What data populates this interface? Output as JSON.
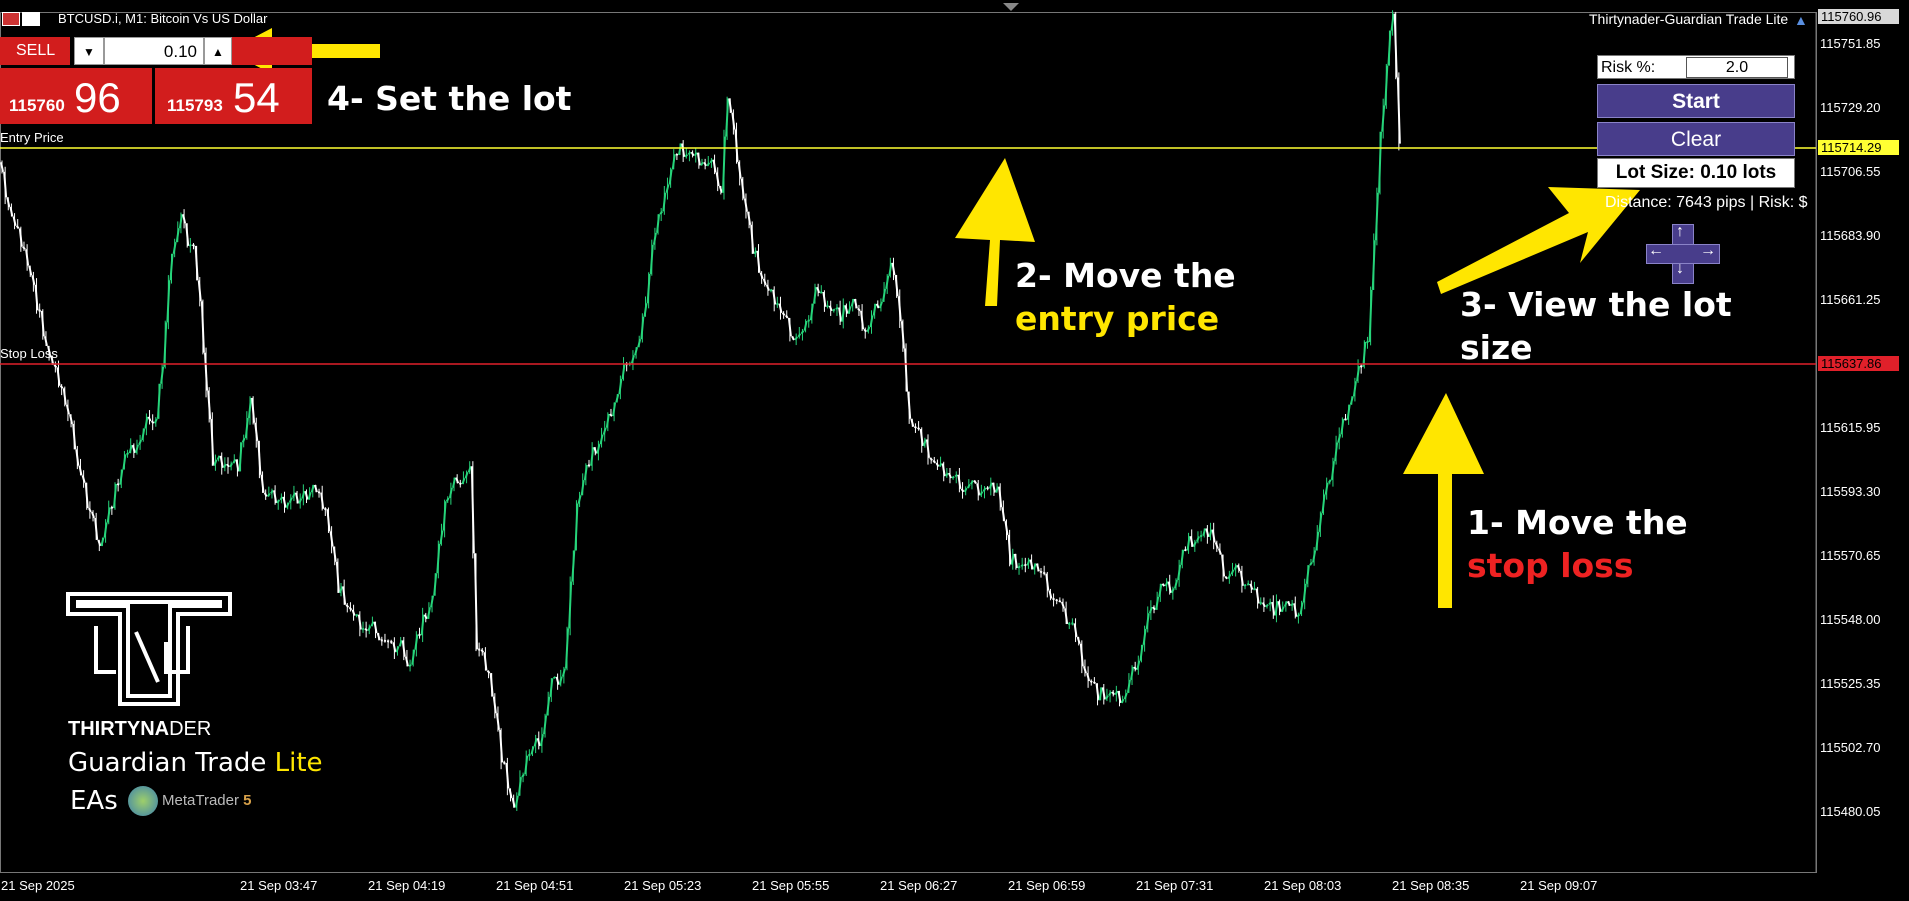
{
  "window": {
    "symbol_title": "BTCUSD.i, M1:  Bitcoin Vs US Dollar",
    "ea_title": "Thirtynader-Guardian Trade Lite"
  },
  "trade_panel": {
    "sell_label": "SELL",
    "lot_value": "0.10",
    "sell_price_prefix": "115760",
    "sell_price_big": "96",
    "buy_price_prefix": "115793",
    "buy_price_big": "54"
  },
  "ea_panel": {
    "risk_label": "Risk %:",
    "risk_value": "2.0",
    "start_label": "Start",
    "clear_label": "Clear",
    "lot_size_text": "Lot Size: 0.10 lots",
    "distance_text": "Distance: 7643 pips | Risk: $"
  },
  "lines": {
    "entry_label": "Entry Price",
    "entry_price": "115714.29",
    "stop_label": "Stop Loss",
    "stop_price": "115637.86",
    "current_price": "115760.96"
  },
  "colors": {
    "up_candle": "#26d47a",
    "down_candle": "#ffffff",
    "entry_line": "#ffff33",
    "stop_line": "#e0202a",
    "sell_red": "#d21d1d",
    "panel_purple": "#483d8b",
    "annotation_yellow": "#ffe600",
    "annotation_red": "#ee2222"
  },
  "price_axis": [
    "115751.85",
    "115729.20",
    "115706.55",
    "115683.90",
    "115661.25",
    "115615.95",
    "115593.30",
    "115570.65",
    "115548.00",
    "115525.35",
    "115502.70",
    "115480.05"
  ],
  "time_axis": [
    "21 Sep 2025",
    "21 Sep 03:47",
    "21 Sep 04:19",
    "21 Sep 04:51",
    "21 Sep 05:23",
    "21 Sep 05:55",
    "21 Sep 06:27",
    "21 Sep 06:59",
    "21 Sep 07:31",
    "21 Sep 08:03",
    "21 Sep 08:35",
    "21 Sep 09:07"
  ],
  "annotations": {
    "step4": "4- Set the lot",
    "step2_line1": "2- Move the",
    "step2_line2": "entry price",
    "step3_line1": "3- View the lot",
    "step3_line2": "size",
    "step1_line1": "1- Move the",
    "step1_line2": "stop loss"
  },
  "logo": {
    "brand_bold": "THIRTYNA",
    "brand_rest": "DER",
    "product": "Guardian Trade",
    "product_accent": "Lite",
    "eas": "EAs",
    "platform": "MetaTrader",
    "platform_version": "5"
  },
  "chart_data": {
    "type": "candlestick",
    "title": "BTCUSD.i, M1:  Bitcoin Vs US Dollar",
    "y_ticks": [
      115480.05,
      115502.7,
      115525.35,
      115548.0,
      115570.65,
      115593.3,
      115615.95,
      115637.86,
      115661.25,
      115683.9,
      115706.55,
      115714.29,
      115729.2,
      115751.85,
      115760.96
    ],
    "x_ticks": [
      "21 Sep 2025",
      "21 Sep 03:47",
      "21 Sep 04:19",
      "21 Sep 04:51",
      "21 Sep 05:23",
      "21 Sep 05:55",
      "21 Sep 06:27",
      "21 Sep 06:59",
      "21 Sep 07:31",
      "21 Sep 08:03",
      "21 Sep 08:35",
      "21 Sep 09:07"
    ],
    "ylim": [
      115470,
      115768
    ],
    "entry_price": 115714.29,
    "stop_loss": 115637.86,
    "close_path": [
      [
        0,
        115710
      ],
      [
        4,
        115690
      ],
      [
        8,
        115680
      ],
      [
        12,
        115660
      ],
      [
        16,
        115640
      ],
      [
        20,
        115630
      ],
      [
        24,
        115610
      ],
      [
        26,
        115600
      ],
      [
        28,
        115590
      ],
      [
        32,
        115575
      ],
      [
        36,
        115590
      ],
      [
        40,
        115605
      ],
      [
        44,
        115610
      ],
      [
        48,
        115620
      ],
      [
        50,
        115620
      ],
      [
        52,
        115640
      ],
      [
        55,
        115680
      ],
      [
        58,
        115690
      ],
      [
        60,
        115682
      ],
      [
        62,
        115678
      ],
      [
        64,
        115660
      ],
      [
        66,
        115630
      ],
      [
        68,
        115605
      ],
      [
        72,
        115604
      ],
      [
        76,
        115603
      ],
      [
        80,
        115625
      ],
      [
        84,
        115593
      ],
      [
        90,
        115590
      ],
      [
        96,
        115591
      ],
      [
        100,
        115595
      ],
      [
        104,
        115588
      ],
      [
        108,
        115560
      ],
      [
        112,
        115550
      ],
      [
        116,
        115545
      ],
      [
        120,
        115545
      ],
      [
        124,
        115538
      ],
      [
        128,
        115540
      ],
      [
        130,
        115530
      ],
      [
        134,
        115545
      ],
      [
        138,
        115555
      ],
      [
        142,
        115590
      ],
      [
        146,
        115598
      ],
      [
        150,
        115600
      ],
      [
        152,
        115540
      ],
      [
        156,
        115530
      ],
      [
        160,
        115500
      ],
      [
        164,
        115480
      ],
      [
        168,
        115500
      ],
      [
        172,
        115505
      ],
      [
        176,
        115525
      ],
      [
        180,
        115530
      ],
      [
        184,
        115590
      ],
      [
        188,
        115605
      ],
      [
        192,
        115612
      ],
      [
        196,
        115625
      ],
      [
        200,
        115640
      ],
      [
        204,
        115645
      ],
      [
        208,
        115680
      ],
      [
        212,
        115700
      ],
      [
        216,
        115715
      ],
      [
        220,
        115712
      ],
      [
        224,
        115710
      ],
      [
        228,
        115708
      ],
      [
        230,
        115700
      ],
      [
        232,
        115735
      ],
      [
        236,
        115705
      ],
      [
        240,
        115680
      ],
      [
        244,
        115665
      ],
      [
        248,
        115660
      ],
      [
        252,
        115650
      ],
      [
        256,
        115648
      ],
      [
        260,
        115665
      ],
      [
        264,
        115660
      ],
      [
        268,
        115656
      ],
      [
        272,
        115660
      ],
      [
        276,
        115650
      ],
      [
        280,
        115660
      ],
      [
        284,
        115672
      ],
      [
        286,
        115665
      ],
      [
        290,
        115620
      ],
      [
        294,
        115612
      ],
      [
        298,
        115602
      ],
      [
        302,
        115600
      ],
      [
        306,
        115596
      ],
      [
        310,
        115595
      ],
      [
        314,
        115594
      ],
      [
        318,
        115596
      ],
      [
        322,
        115570
      ],
      [
        326,
        115566
      ],
      [
        330,
        115568
      ],
      [
        334,
        115560
      ],
      [
        338,
        115552
      ],
      [
        342,
        115546
      ],
      [
        346,
        115530
      ],
      [
        350,
        115522
      ],
      [
        354,
        115521
      ],
      [
        358,
        115520
      ],
      [
        362,
        115532
      ],
      [
        366,
        115548
      ],
      [
        370,
        115560
      ],
      [
        374,
        115560
      ],
      [
        378,
        115575
      ],
      [
        382,
        115576
      ],
      [
        386,
        115580
      ],
      [
        390,
        115565
      ],
      [
        394,
        115565
      ],
      [
        398,
        115560
      ],
      [
        402,
        115555
      ],
      [
        406,
        115552
      ],
      [
        410,
        115553
      ],
      [
        414,
        115550
      ],
      [
        418,
        115570
      ],
      [
        422,
        115590
      ],
      [
        426,
        115610
      ],
      [
        430,
        115625
      ],
      [
        434,
        115640
      ],
      [
        436,
        115648
      ],
      [
        438,
        115680
      ],
      [
        440,
        115720
      ],
      [
        442,
        115745
      ],
      [
        444,
        115765
      ],
      [
        446,
        115715
      ]
    ]
  }
}
